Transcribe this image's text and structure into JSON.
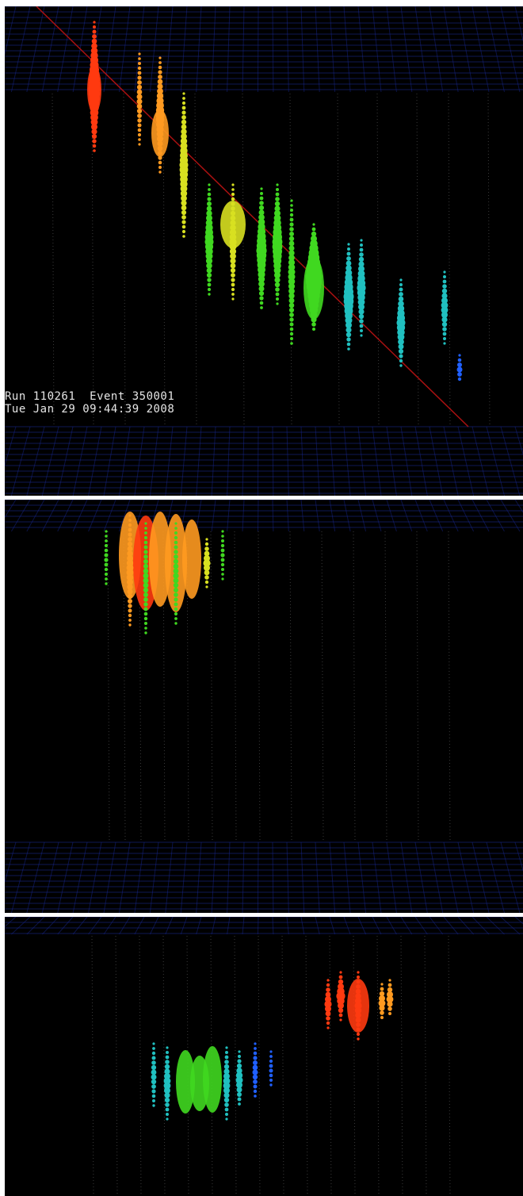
{
  "figure": {
    "description_free": true,
    "panels": [
      {
        "id": "panel-1",
        "caption": {
          "run_label": "Run 110261  Event 350001",
          "date_label": "Tue Jan 29 09:44:39 2008"
        }
      },
      {
        "id": "panel-2"
      },
      {
        "id": "panel-3"
      }
    ]
  },
  "colors": {
    "background": "#000000",
    "grid": "#1a2a9a",
    "track": "#aa1111",
    "strings": "#3a3a3a",
    "hot": "#ff3a10",
    "warm": "#ff9a20",
    "mid": "#d8e020",
    "green": "#40d820",
    "cool": "#20c0c0",
    "blue": "#2060ff"
  }
}
